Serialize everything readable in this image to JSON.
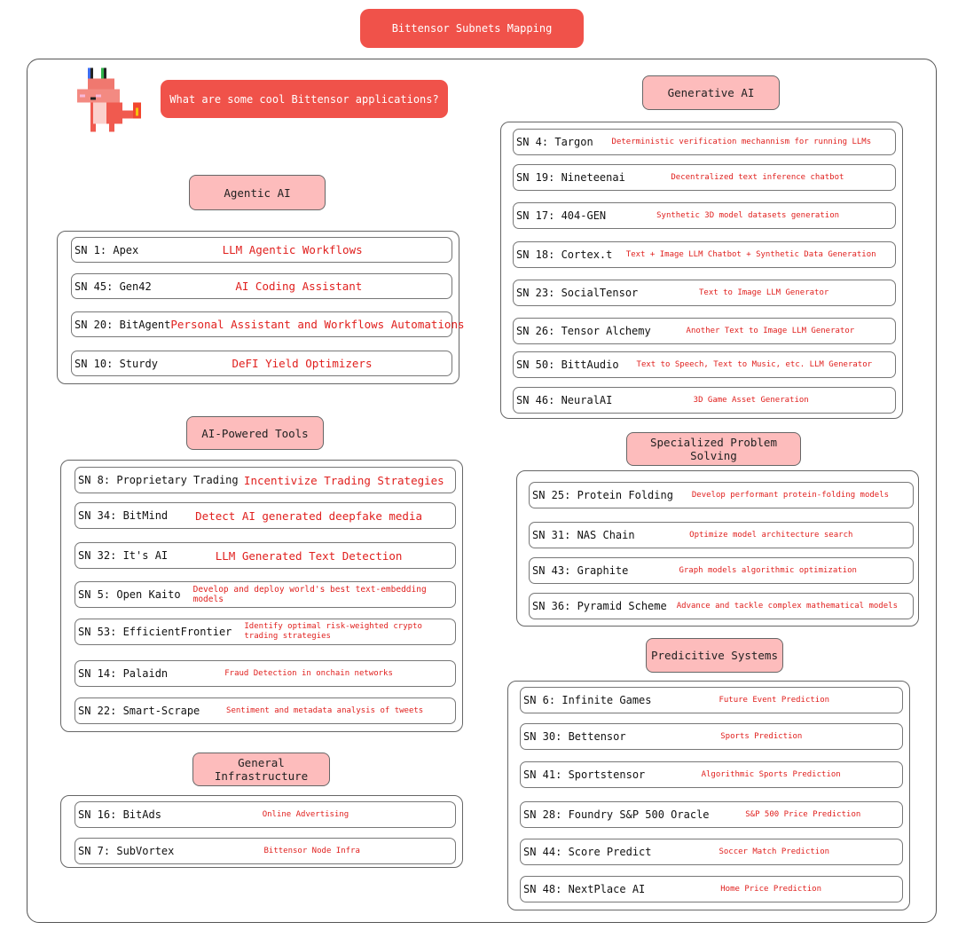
{
  "title": "Bittensor Subnets Mapping",
  "question": "What are some cool Bittensor applications?",
  "colors": {
    "accent": "#f0524a",
    "category_fill": "#fdbcbc",
    "description_text": "#e0201e"
  },
  "mascot": "pixel-dragon-icon",
  "categories": [
    {
      "name": "Agentic AI",
      "subnets": [
        {
          "sn": "SN 1: Apex",
          "desc": "LLM Agentic Workflows"
        },
        {
          "sn": "SN 45: Gen42",
          "desc": "AI Coding Assistant"
        },
        {
          "sn": "SN 20: BitAgent",
          "desc": "Personal Assistant and Workflows Automations"
        },
        {
          "sn": "SN 10: Sturdy",
          "desc": "DeFI Yield Optimizers"
        }
      ]
    },
    {
      "name": "AI-Powered Tools",
      "subnets": [
        {
          "sn": "SN 8: Proprietary Trading",
          "desc": "Incentivize Trading Strategies"
        },
        {
          "sn": "SN 34: BitMind",
          "desc": "Detect AI generated deepfake media"
        },
        {
          "sn": "SN 32: It's AI",
          "desc": "LLM Generated Text Detection"
        },
        {
          "sn": "SN 5: Open Kaito",
          "desc": "Develop and deploy world's best text-embedding models"
        },
        {
          "sn": "SN 53: EfficientFrontier",
          "desc": "Identify optimal risk-weighted crypto trading strategies"
        },
        {
          "sn": "SN 14: Palaidn",
          "desc": "Fraud Detection in onchain networks"
        },
        {
          "sn": "SN 22: Smart-Scrape",
          "desc": "Sentiment and metadata analysis of tweets"
        }
      ]
    },
    {
      "name": "General Infrastructure",
      "subnets": [
        {
          "sn": "SN 16: BitAds",
          "desc": "Online Advertising"
        },
        {
          "sn": "SN 7: SubVortex",
          "desc": "Bittensor Node Infra"
        }
      ]
    },
    {
      "name": "Generative AI",
      "subnets": [
        {
          "sn": "SN 4: Targon",
          "desc": "Deterministic verification mechannism for running LLMs"
        },
        {
          "sn": "SN 19: Nineteenai",
          "desc": "Decentralized text inference chatbot"
        },
        {
          "sn": "SN 17: 404-GEN",
          "desc": "Synthetic 3D model datasets generation"
        },
        {
          "sn": "SN 18: Cortex.t",
          "desc": "Text + Image LLM Chatbot + Synthetic Data Generation"
        },
        {
          "sn": "SN 23: SocialTensor",
          "desc": "Text to Image LLM Generator"
        },
        {
          "sn": "SN 26: Tensor Alchemy",
          "desc": "Another Text to Image LLM Generator"
        },
        {
          "sn": "SN 50: BittAudio",
          "desc": "Text to Speech, Text to Music, etc. LLM Generator"
        },
        {
          "sn": "SN 46: NeuralAI",
          "desc": "3D Game Asset Generation"
        }
      ]
    },
    {
      "name": "Specialized Problem Solving",
      "subnets": [
        {
          "sn": "SN 25: Protein Folding",
          "desc": "Develop performant protein-folding models"
        },
        {
          "sn": "SN 31: NAS Chain",
          "desc": "Optimize model architecture search"
        },
        {
          "sn": "SN 43: Graphite",
          "desc": "Graph models algorithmic optimization"
        },
        {
          "sn": "SN 36: Pyramid Scheme",
          "desc": "Advance and tackle complex mathematical models"
        }
      ]
    },
    {
      "name": "Predicitive Systems",
      "subnets": [
        {
          "sn": "SN 6: Infinite Games",
          "desc": "Future Event Prediction"
        },
        {
          "sn": "SN 30: Bettensor",
          "desc": "Sports Prediction"
        },
        {
          "sn": "SN 41: Sportstensor",
          "desc": "Algorithmic Sports Prediction"
        },
        {
          "sn": "SN 28: Foundry S&P 500 Oracle",
          "desc": "S&P 500 Price Prediction"
        },
        {
          "sn": "SN 44: Score Predict",
          "desc": "Soccer Match Prediction"
        },
        {
          "sn": "SN 48: NextPlace AI",
          "desc": "Home Price Prediction"
        }
      ]
    }
  ]
}
